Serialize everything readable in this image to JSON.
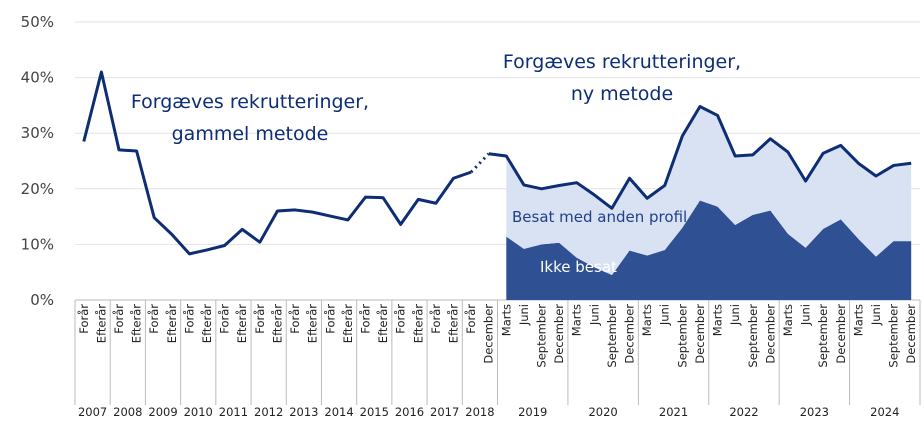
{
  "chart_data": {
    "type": "line",
    "groups": [
      {
        "label": "2007",
        "categories": [
          "Forår",
          "Efterår"
        ]
      },
      {
        "label": "2008",
        "categories": [
          "Forår",
          "Efterår"
        ]
      },
      {
        "label": "2009",
        "categories": [
          "Forår",
          "Efterår"
        ]
      },
      {
        "label": "2010",
        "categories": [
          "Forår",
          "Efterår"
        ]
      },
      {
        "label": "2011",
        "categories": [
          "Forår",
          "Efterår"
        ]
      },
      {
        "label": "2012",
        "categories": [
          "Forår",
          "Efterår"
        ]
      },
      {
        "label": "2013",
        "categories": [
          "Forår",
          "Efterår"
        ]
      },
      {
        "label": "2014",
        "categories": [
          "Forår",
          "Efterår"
        ]
      },
      {
        "label": "2015",
        "categories": [
          "Forår",
          "Efterår"
        ]
      },
      {
        "label": "2016",
        "categories": [
          "Forår",
          "Efterår"
        ]
      },
      {
        "label": "2017",
        "categories": [
          "Forår",
          "Efterår"
        ]
      },
      {
        "label": "2018",
        "categories": [
          "Forår",
          "December"
        ]
      },
      {
        "label": "2019",
        "categories": [
          "Marts",
          "Juni",
          "September",
          "December"
        ]
      },
      {
        "label": "2020",
        "categories": [
          "Marts",
          "Juni",
          "September",
          "December"
        ]
      },
      {
        "label": "2021",
        "categories": [
          "Marts",
          "Juni",
          "September",
          "December"
        ]
      },
      {
        "label": "2022",
        "categories": [
          "Marts",
          "Juni",
          "September",
          "December"
        ]
      },
      {
        "label": "2023",
        "categories": [
          "Marts",
          "Juni",
          "September",
          "December"
        ]
      },
      {
        "label": "2024",
        "categories": [
          "Marts",
          "Juni",
          "September",
          "December"
        ]
      }
    ],
    "ylim": [
      0,
      50
    ],
    "yticks": [
      {
        "value": 0,
        "label": "0%"
      },
      {
        "value": 10,
        "label": "10%"
      },
      {
        "value": 20,
        "label": "20%"
      },
      {
        "value": 30,
        "label": "30%"
      },
      {
        "value": 40,
        "label": "40%"
      },
      {
        "value": 50,
        "label": "50%"
      }
    ],
    "grid": true,
    "connector": "dotted",
    "lines": [
      {
        "color": "#0d2d74",
        "annotation": [
          "Forgæves rekrutteringer,",
          "gammel metode"
        ],
        "values": [
          28.5,
          41,
          27,
          26.8,
          14.8,
          11.8,
          8.3,
          9,
          9.8,
          12.7,
          10.4,
          16,
          16.2,
          15.8,
          15.1,
          14.4,
          18.5,
          18.4,
          13.6,
          18.1,
          17.4,
          21.9,
          23,
          null,
          null,
          null,
          null,
          null,
          null,
          null,
          null,
          null,
          null,
          null,
          null,
          null,
          null,
          null,
          null,
          null,
          null,
          null,
          null,
          null,
          null,
          null,
          null,
          null
        ]
      },
      {
        "color": "#0d2d74",
        "annotation": [
          "Forgæves rekrutteringer,",
          "ny metode"
        ],
        "values": [
          null,
          null,
          null,
          null,
          null,
          null,
          null,
          null,
          null,
          null,
          null,
          null,
          null,
          null,
          null,
          null,
          null,
          null,
          null,
          null,
          null,
          null,
          null,
          26.3,
          25.9,
          20.7,
          20,
          20.6,
          21.1,
          18.9,
          16.5,
          21.9,
          18.3,
          20.6,
          29.5,
          34.8,
          33.2,
          25.9,
          26.1,
          29,
          26.6,
          21.4,
          26.4,
          27.8,
          24.6,
          22.3,
          24.2,
          24.6
        ]
      }
    ],
    "areas": [
      {
        "name": "Ikke besat",
        "color": "#2f5193",
        "label_color": "#ffffff",
        "values": [
          null,
          null,
          null,
          null,
          null,
          null,
          null,
          null,
          null,
          null,
          null,
          null,
          null,
          null,
          null,
          null,
          null,
          null,
          null,
          null,
          null,
          null,
          null,
          null,
          11.4,
          9.2,
          10,
          10.3,
          7.6,
          5.9,
          4.5,
          8.9,
          8,
          9,
          13,
          17.9,
          16.8,
          13.5,
          15.3,
          16.1,
          11.9,
          9.4,
          12.8,
          14.5,
          11,
          7.8,
          10.6,
          10.6
        ]
      },
      {
        "name": "Besat med anden profil",
        "color": "#d9e2f3",
        "label_color": "#1f3f8a",
        "values": [
          null,
          null,
          null,
          null,
          null,
          null,
          null,
          null,
          null,
          null,
          null,
          null,
          null,
          null,
          null,
          null,
          null,
          null,
          null,
          null,
          null,
          null,
          null,
          null,
          14.5,
          11.5,
          10,
          10.3,
          13.5,
          13,
          12,
          13,
          10.3,
          11.6,
          16.5,
          16.9,
          16.4,
          12.4,
          10.8,
          12.9,
          14.7,
          12,
          13.6,
          13.3,
          13.6,
          14.5,
          13.6,
          14
        ]
      }
    ]
  }
}
